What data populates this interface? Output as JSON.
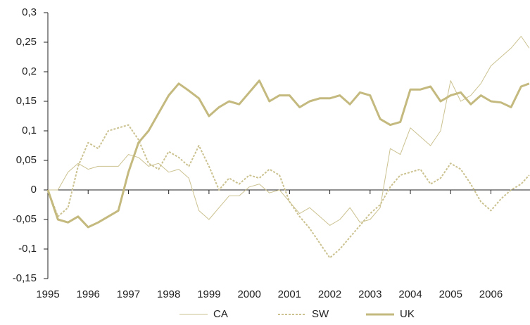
{
  "chart_data": {
    "type": "line",
    "x": [
      1995,
      1995.25,
      1995.5,
      1995.75,
      1996,
      1996.25,
      1996.5,
      1996.75,
      1997,
      1997.25,
      1997.5,
      1997.75,
      1998,
      1998.25,
      1998.5,
      1998.75,
      1999,
      1999.25,
      1999.5,
      1999.75,
      2000,
      2000.25,
      2000.5,
      2000.75,
      2001,
      2001.25,
      2001.5,
      2001.75,
      2002,
      2002.25,
      2002.5,
      2002.75,
      2003,
      2003.25,
      2003.5,
      2003.75,
      2004,
      2004.25,
      2004.5,
      2004.75,
      2005,
      2005.25,
      2005.5,
      2005.75,
      2006,
      2006.25,
      2006.5,
      2006.75,
      2006.95
    ],
    "series": [
      {
        "name": "CA",
        "color": "#cbc290",
        "style": "thin",
        "values": [
          0,
          0,
          0.03,
          0.045,
          0.035,
          0.04,
          0.04,
          0.04,
          0.06,
          0.055,
          0.04,
          0.045,
          0.03,
          0.035,
          0.02,
          -0.035,
          -0.05,
          -0.03,
          -0.01,
          -0.01,
          0.005,
          0.01,
          -0.005,
          0,
          -0.02,
          -0.04,
          -0.03,
          -0.045,
          -0.06,
          -0.05,
          -0.03,
          -0.055,
          -0.05,
          -0.03,
          0.07,
          0.06,
          0.105,
          0.09,
          0.075,
          0.1,
          0.185,
          0.15,
          0.16,
          0.18,
          0.21,
          0.225,
          0.24,
          0.26,
          0.24
        ]
      },
      {
        "name": "SW",
        "color": "#cbc290",
        "style": "dashed",
        "values": [
          0,
          -0.045,
          -0.03,
          0.04,
          0.08,
          0.07,
          0.1,
          0.105,
          0.11,
          0.085,
          0.045,
          0.035,
          0.065,
          0.055,
          0.04,
          0.075,
          0.04,
          0,
          0.02,
          0.01,
          0.025,
          0.02,
          0.035,
          0.025,
          -0.02,
          -0.045,
          -0.065,
          -0.09,
          -0.115,
          -0.1,
          -0.08,
          -0.06,
          -0.04,
          -0.025,
          0.005,
          0.025,
          0.03,
          0.035,
          0.01,
          0.02,
          0.045,
          0.035,
          0.01,
          -0.02,
          -0.035,
          -0.015,
          0,
          0.01,
          0.025
        ]
      },
      {
        "name": "UK",
        "color": "#c4b97e",
        "style": "thick",
        "values": [
          0,
          -0.05,
          -0.055,
          -0.045,
          -0.063,
          -0.055,
          -0.045,
          -0.035,
          0.03,
          0.08,
          0.1,
          0.13,
          0.16,
          0.18,
          0.168,
          0.155,
          0.125,
          0.14,
          0.15,
          0.145,
          0.165,
          0.185,
          0.15,
          0.16,
          0.16,
          0.14,
          0.15,
          0.155,
          0.155,
          0.16,
          0.145,
          0.165,
          0.16,
          0.12,
          0.11,
          0.115,
          0.17,
          0.17,
          0.175,
          0.15,
          0.16,
          0.165,
          0.145,
          0.16,
          0.15,
          0.148,
          0.14,
          0.175,
          0.18
        ]
      }
    ],
    "xlim": [
      1995,
      2006.97
    ],
    "xticks": [
      1995,
      1996,
      1997,
      1998,
      1999,
      2000,
      2001,
      2002,
      2003,
      2004,
      2005,
      2006
    ],
    "ylim": [
      -0.15,
      0.3
    ],
    "yticks": [
      {
        "value": -0.15,
        "label": "-0,15"
      },
      {
        "value": -0.1,
        "label": "-0,1"
      },
      {
        "value": -0.05,
        "label": "-0,05"
      },
      0,
      {
        "value": 0.05,
        "label": "0,05"
      },
      {
        "value": 0.1,
        "label": "0,1"
      },
      {
        "value": 0.15,
        "label": "0,15"
      },
      {
        "value": 0.2,
        "label": "0,2"
      },
      {
        "value": 0.25,
        "label": "0,25"
      },
      {
        "value": 0.3,
        "label": "0,3"
      }
    ]
  }
}
